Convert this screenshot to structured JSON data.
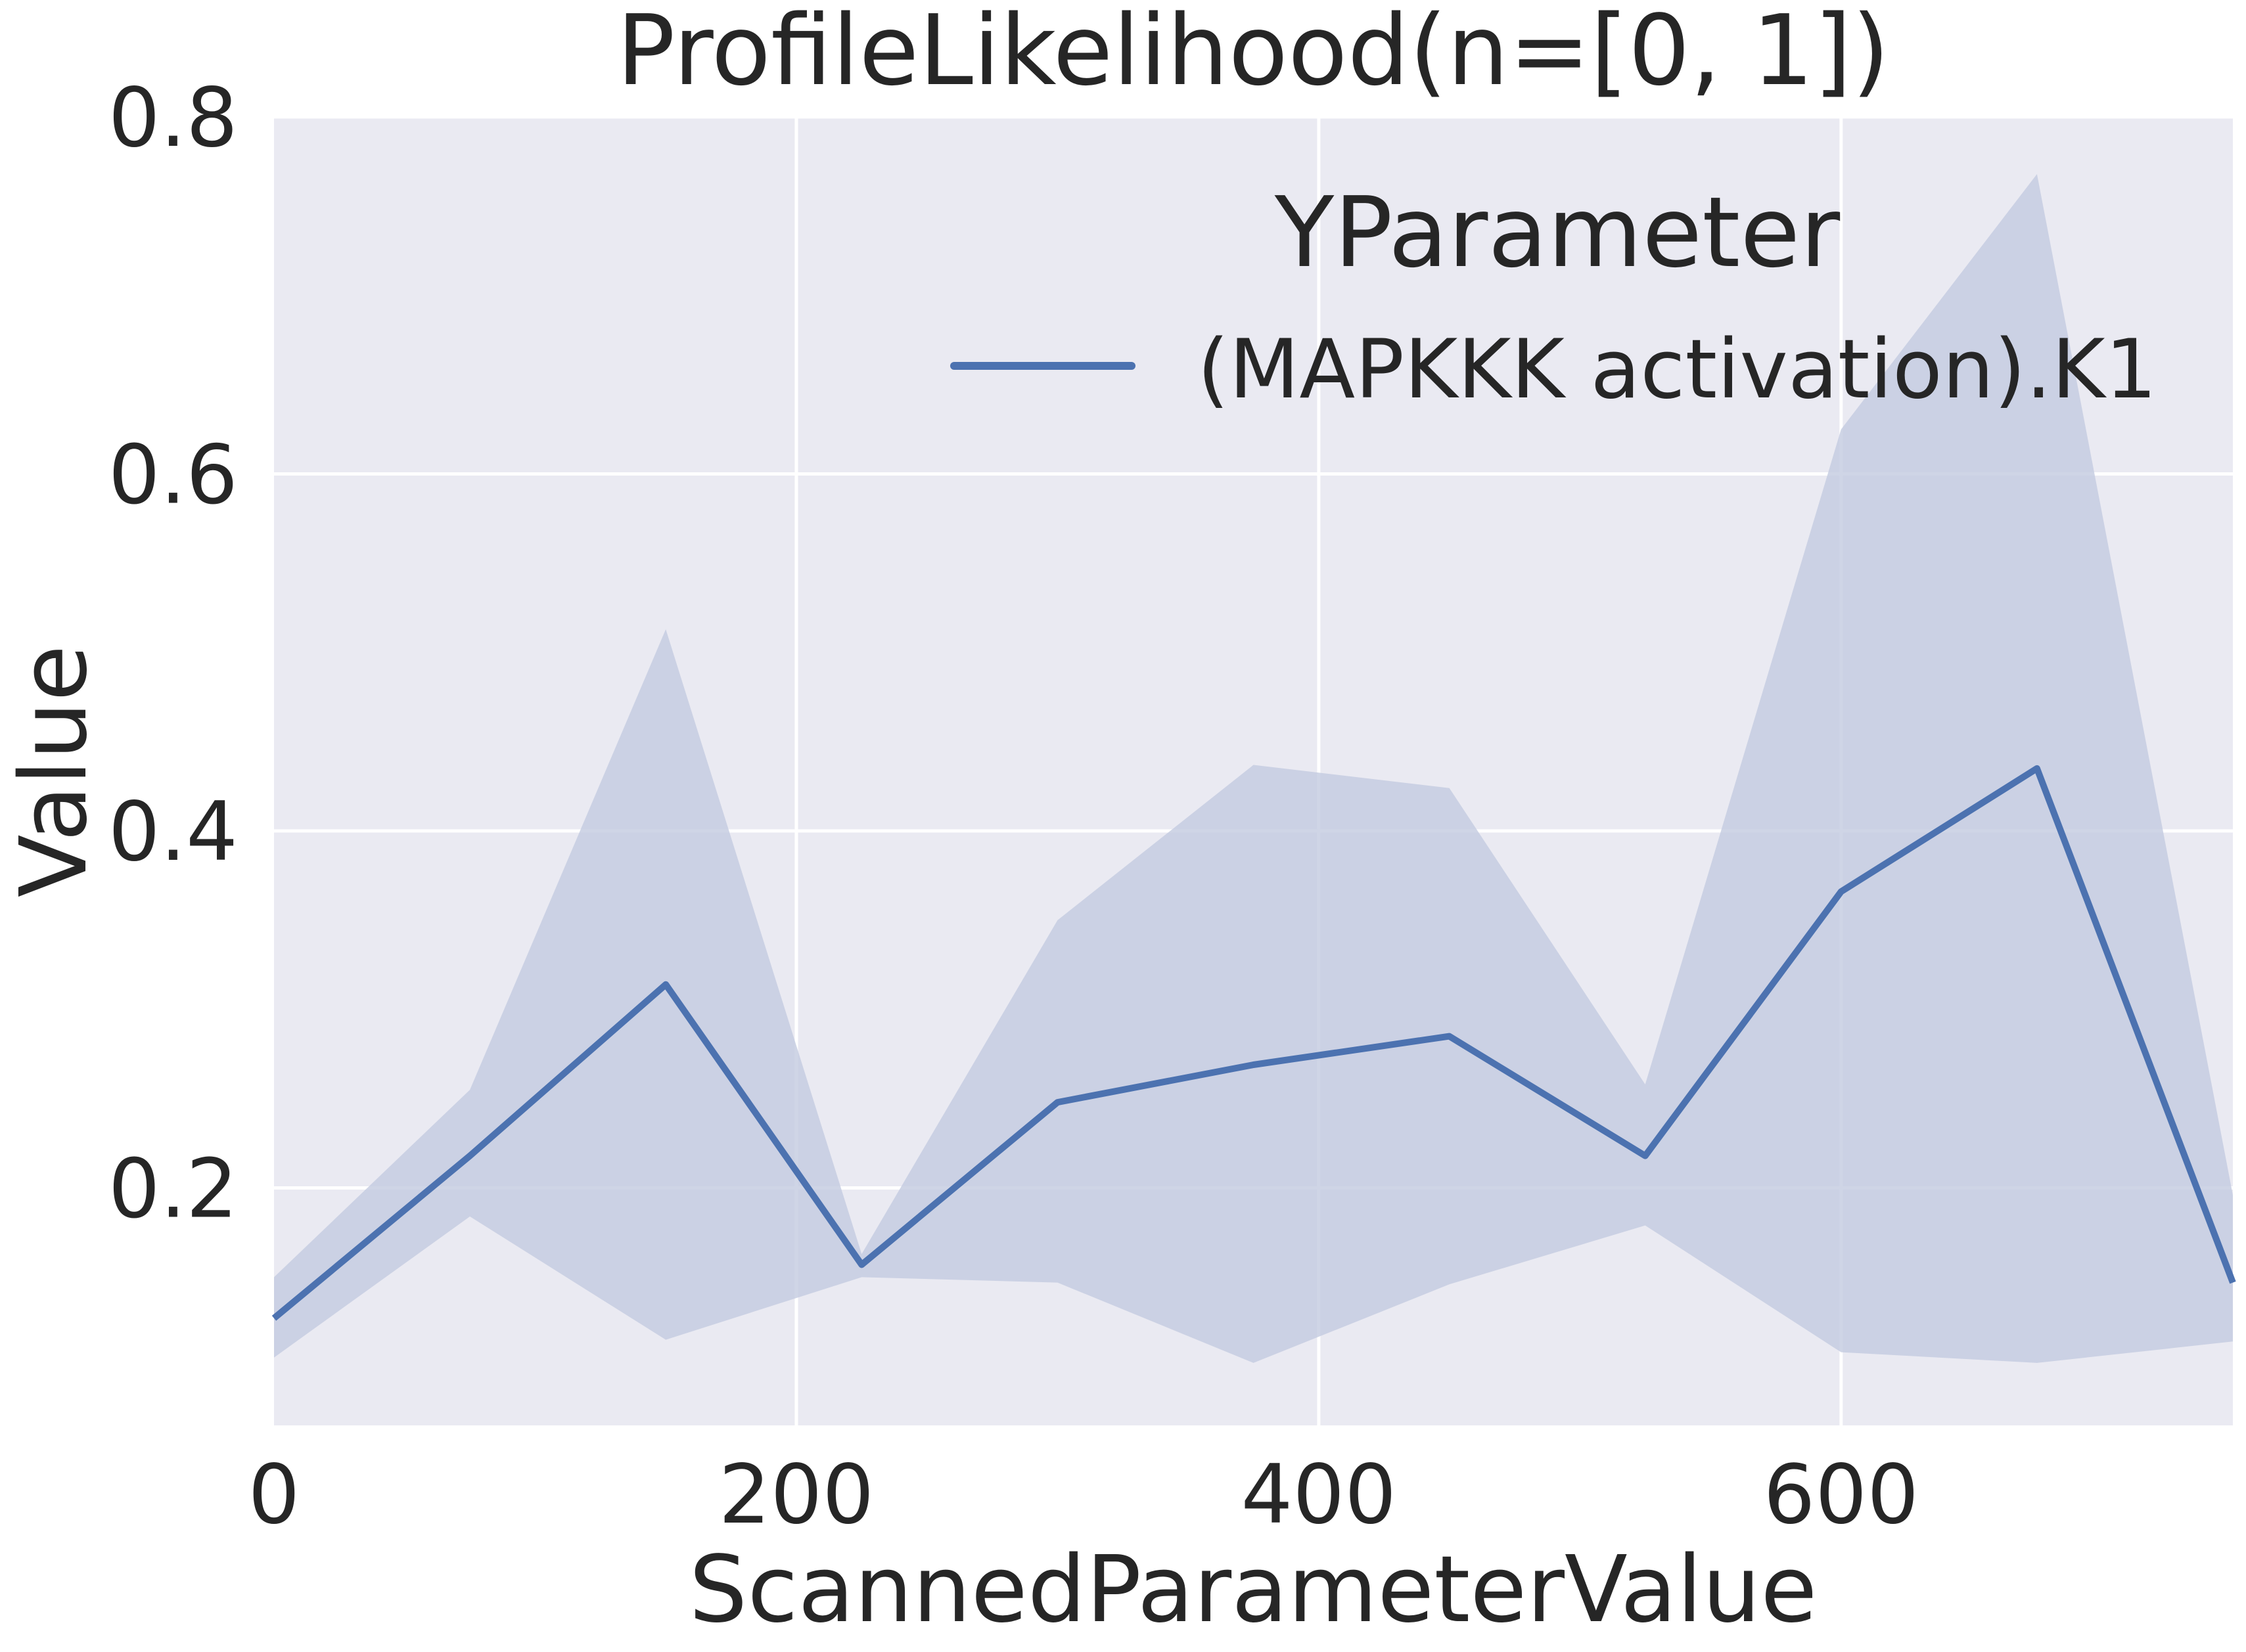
{
  "chart_data": {
    "type": "line",
    "title": "ProfileLikelihood(n=[0, 1])",
    "xlabel": "ScannedParameterValue",
    "ylabel": "Value",
    "xlim": [
      0,
      750
    ],
    "ylim": [
      0.067,
      0.8
    ],
    "xticks": [
      0,
      200,
      400,
      600
    ],
    "xtick_labels": [
      "0",
      "200",
      "400",
      "600"
    ],
    "yticks": [
      0.2,
      0.4,
      0.6,
      0.8
    ],
    "ytick_labels": [
      "0.2",
      "0.4",
      "0.6",
      "0.8"
    ],
    "grid": true,
    "legend": {
      "title": "YParameter",
      "placement": "top-right",
      "entries": [
        "(MAPKKK activation).K1"
      ]
    },
    "series": [
      {
        "name": "(MAPKKK activation).K1",
        "color": "#4c72b0",
        "x": [
          0,
          75,
          150,
          225,
          300,
          375,
          450,
          525,
          600,
          675,
          750
        ],
        "y": [
          0.127,
          0.218,
          0.314,
          0.157,
          0.248,
          0.269,
          0.285,
          0.218,
          0.366,
          0.435,
          0.147
        ],
        "band_upper": [
          0.15,
          0.255,
          0.513,
          0.163,
          0.35,
          0.437,
          0.424,
          0.258,
          0.625,
          0.768,
          0.196
        ],
        "band_lower": [
          0.105,
          0.184,
          0.115,
          0.15,
          0.147,
          0.102,
          0.146,
          0.179,
          0.108,
          0.102,
          0.114
        ]
      }
    ],
    "colors": {
      "background": "#eaeaf2",
      "grid": "#ffffff",
      "band": "#c3cbe0",
      "text": "#262626"
    }
  }
}
